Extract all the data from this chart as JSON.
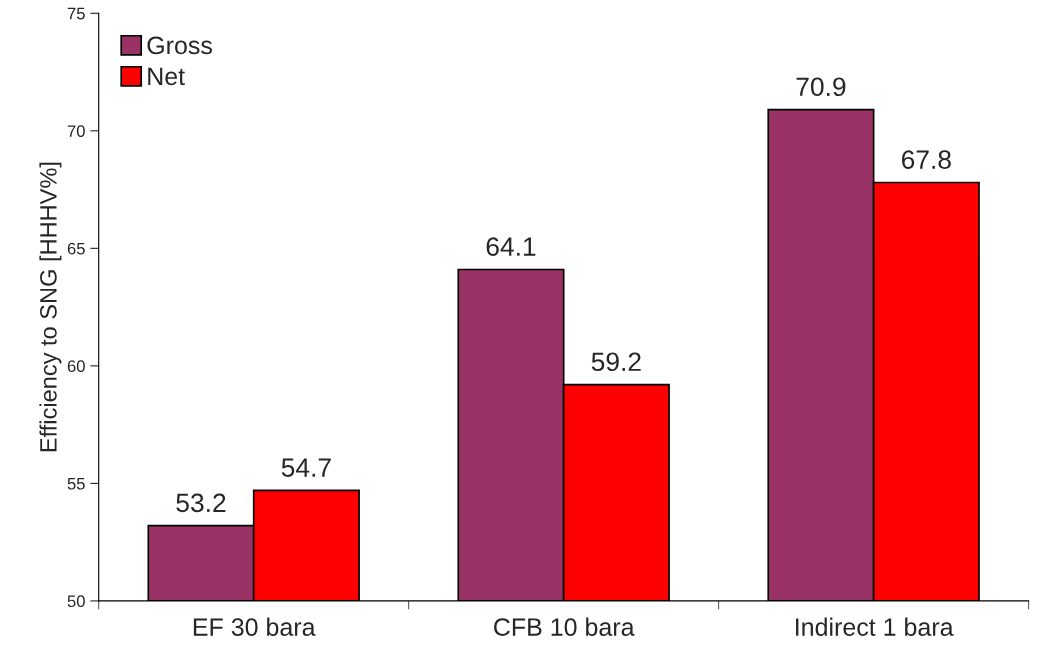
{
  "chart_data": {
    "type": "bar",
    "ylabel": "Efficiency to SNG [HHHV%]",
    "categories": [
      "EF 30 bara",
      "CFB 10 bara",
      "Indirect 1 bara"
    ],
    "series": [
      {
        "name": "Gross",
        "color": "#993366",
        "values": [
          53.2,
          64.1,
          70.9
        ]
      },
      {
        "name": "Net",
        "color": "#ff0000",
        "values": [
          54.7,
          59.2,
          67.8
        ]
      }
    ],
    "ylim": [
      50,
      75
    ],
    "yticks": [
      50,
      55,
      60,
      65,
      70,
      75
    ],
    "grid": false,
    "legend": "top left",
    "data_labels": true
  }
}
